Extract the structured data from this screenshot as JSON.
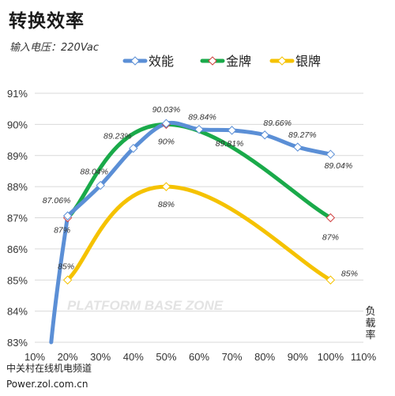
{
  "header": {
    "title": "转换效率",
    "subtitle": "输入电压：220Vac"
  },
  "footer": {
    "line1": "中关村在线机电频道",
    "line2": "Power.zol.com.cn"
  },
  "chart_data": {
    "type": "line",
    "title": "转换效率",
    "subtitle": "输入电压：220Vac",
    "xlabel": "负载率",
    "ylabel": "",
    "x_tick_labels": [
      "10%",
      "20%",
      "30%",
      "40%",
      "50%",
      "60%",
      "70%",
      "80%",
      "90%",
      "100%",
      "110%"
    ],
    "y_tick_labels": [
      "83%",
      "84%",
      "85%",
      "86%",
      "87%",
      "88%",
      "89%",
      "90%",
      "91%"
    ],
    "xlim": [
      10,
      110
    ],
    "ylim": [
      83,
      91
    ],
    "grid": {
      "horizontal": true,
      "vertical": false
    },
    "legend": "top-center",
    "watermark": "PLATFORM BASE ZONE",
    "series": [
      {
        "name": "效能",
        "color": "#5b8fd6",
        "marker": "diamond",
        "x": [
          20,
          30,
          40,
          50,
          60,
          70,
          80,
          90,
          100
        ],
        "values": [
          87.06,
          88.04,
          89.23,
          90.03,
          89.84,
          89.81,
          89.66,
          89.27,
          89.04
        ],
        "labels": [
          "87.06%",
          "88.04%",
          "89.23%",
          "90.03%",
          "89.84%",
          "89.81%",
          "89.66%",
          "89.27%",
          "89.04%"
        ],
        "dropline_start": {
          "x": 15,
          "y": 83
        }
      },
      {
        "name": "金牌",
        "color": "#1aaa4a",
        "marker": "diamond",
        "x": [
          20,
          50,
          100
        ],
        "values": [
          87,
          90,
          87
        ],
        "labels": [
          "87%",
          "90%",
          "87%"
        ]
      },
      {
        "name": "银牌",
        "color": "#f5c200",
        "marker": "diamond",
        "x": [
          20,
          50,
          100
        ],
        "values": [
          85,
          88,
          85
        ],
        "labels": [
          "85%",
          "88%",
          "85%"
        ]
      }
    ]
  }
}
